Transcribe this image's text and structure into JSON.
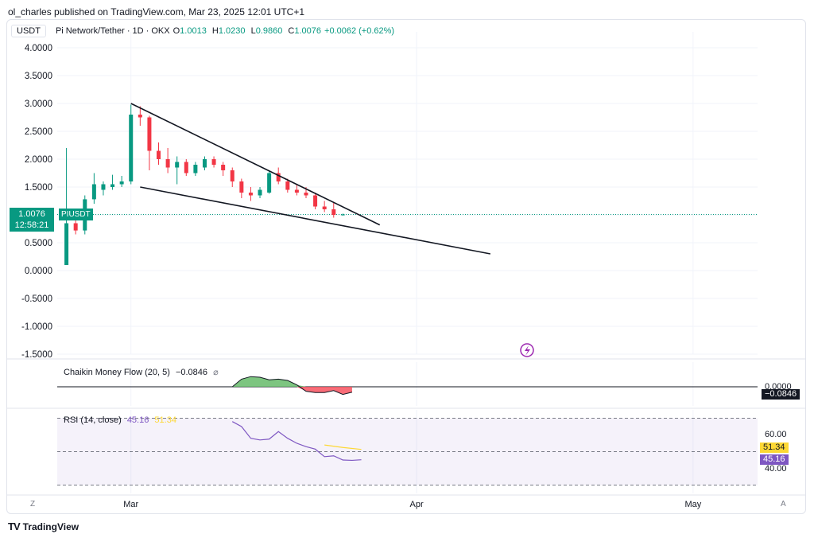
{
  "publisher_line": "ol_charles published on TradingView.com, Mar 23, 2025 12:01 UTC+1",
  "header": {
    "currency": "USDT",
    "symbol": "Pi Network/Tether · 1D · OKX",
    "open_label": "O",
    "open": "1.0013",
    "high_label": "H",
    "high": "1.0230",
    "low_label": "L",
    "low": "0.9860",
    "close_label": "C",
    "close": "1.0076",
    "change": "+0.0062 (+0.62%)"
  },
  "price_tag": {
    "value": "1.0076",
    "countdown": "12:58:21",
    "symbol": "PIUSDT"
  },
  "colors": {
    "up": "#089981",
    "down": "#f23645",
    "cmf_up": "#66bb6a",
    "cmf_down": "#f7525f",
    "rsi": "#7e57c2",
    "rsi_ma": "#fdd835"
  },
  "chart_data": [
    {
      "type": "candlestick",
      "title": "Pi Network/Tether · 1D · OKX",
      "ylim": [
        -1.5,
        4.0
      ],
      "y_ticks": [
        "4.0000",
        "3.5000",
        "3.0000",
        "2.5000",
        "2.0000",
        "1.5000",
        "1.0000",
        "0.5000",
        "0.0000",
        "-0.5000",
        "-1.0000",
        "-1.5000"
      ],
      "x_ticks": [
        "Mar",
        "Apr",
        "May"
      ],
      "x_tick_days": [
        0,
        31,
        61
      ],
      "x_range_days": [
        -8,
        68
      ],
      "grid": true,
      "candles": [
        {
          "d": -7,
          "o": 0.1,
          "h": 2.2,
          "l": 0.1,
          "c": 0.85
        },
        {
          "d": -6,
          "o": 0.85,
          "h": 1.05,
          "l": 0.65,
          "c": 0.72
        },
        {
          "d": -5,
          "o": 0.72,
          "h": 1.35,
          "l": 0.65,
          "c": 1.28
        },
        {
          "d": -4,
          "o": 1.28,
          "h": 1.75,
          "l": 1.2,
          "c": 1.55
        },
        {
          "d": -3,
          "o": 1.45,
          "h": 1.6,
          "l": 1.35,
          "c": 1.55
        },
        {
          "d": -2,
          "o": 1.5,
          "h": 1.72,
          "l": 1.45,
          "c": 1.55
        },
        {
          "d": -1,
          "o": 1.55,
          "h": 1.7,
          "l": 1.5,
          "c": 1.6
        },
        {
          "d": 0,
          "o": 1.6,
          "h": 2.98,
          "l": 1.55,
          "c": 2.8
        },
        {
          "d": 1,
          "o": 2.8,
          "h": 2.95,
          "l": 2.6,
          "c": 2.75
        },
        {
          "d": 2,
          "o": 2.75,
          "h": 2.78,
          "l": 1.8,
          "c": 2.15
        },
        {
          "d": 3,
          "o": 2.15,
          "h": 2.3,
          "l": 1.9,
          "c": 2.0
        },
        {
          "d": 4,
          "o": 2.0,
          "h": 2.2,
          "l": 1.75,
          "c": 1.85
        },
        {
          "d": 5,
          "o": 1.85,
          "h": 2.05,
          "l": 1.55,
          "c": 1.95
        },
        {
          "d": 6,
          "o": 1.95,
          "h": 2.0,
          "l": 1.7,
          "c": 1.75
        },
        {
          "d": 7,
          "o": 1.75,
          "h": 1.95,
          "l": 1.7,
          "c": 1.9
        },
        {
          "d": 8,
          "o": 1.85,
          "h": 2.05,
          "l": 1.8,
          "c": 2.0
        },
        {
          "d": 9,
          "o": 2.0,
          "h": 2.05,
          "l": 1.85,
          "c": 1.9
        },
        {
          "d": 10,
          "o": 1.9,
          "h": 1.95,
          "l": 1.7,
          "c": 1.8
        },
        {
          "d": 11,
          "o": 1.8,
          "h": 1.85,
          "l": 1.5,
          "c": 1.6
        },
        {
          "d": 12,
          "o": 1.6,
          "h": 1.65,
          "l": 1.3,
          "c": 1.4
        },
        {
          "d": 13,
          "o": 1.4,
          "h": 1.5,
          "l": 1.25,
          "c": 1.35
        },
        {
          "d": 14,
          "o": 1.35,
          "h": 1.5,
          "l": 1.3,
          "c": 1.45
        },
        {
          "d": 15,
          "o": 1.4,
          "h": 1.8,
          "l": 1.38,
          "c": 1.75
        },
        {
          "d": 16,
          "o": 1.75,
          "h": 1.85,
          "l": 1.55,
          "c": 1.6
        },
        {
          "d": 17,
          "o": 1.6,
          "h": 1.65,
          "l": 1.4,
          "c": 1.45
        },
        {
          "d": 18,
          "o": 1.45,
          "h": 1.55,
          "l": 1.35,
          "c": 1.4
        },
        {
          "d": 19,
          "o": 1.4,
          "h": 1.5,
          "l": 1.3,
          "c": 1.35
        },
        {
          "d": 20,
          "o": 1.35,
          "h": 1.4,
          "l": 1.1,
          "c": 1.15
        },
        {
          "d": 21,
          "o": 1.15,
          "h": 1.25,
          "l": 1.05,
          "c": 1.1
        },
        {
          "d": 22,
          "o": 1.1,
          "h": 1.22,
          "l": 0.95,
          "c": 1.0
        },
        {
          "d": 23,
          "o": 1.0013,
          "h": 1.023,
          "l": 0.986,
          "c": 1.0076
        }
      ],
      "trendlines": [
        {
          "d1": 0,
          "v1": 3.0,
          "d2": 27,
          "v2": 0.82
        },
        {
          "d1": 1,
          "v1": 1.5,
          "d2": 39,
          "v2": 0.3
        }
      ],
      "last_price": 1.0076
    },
    {
      "type": "area",
      "title": "Chaikin Money Flow (20, 5)",
      "value_label": "−0.0846",
      "eye_glyph": "⌀",
      "zero_label": "0.0000",
      "last_label": "−0.0846",
      "points": [
        {
          "d": 11,
          "v": 0.0
        },
        {
          "d": 12,
          "v": 0.12
        },
        {
          "d": 13,
          "v": 0.16
        },
        {
          "d": 14,
          "v": 0.15
        },
        {
          "d": 15,
          "v": 0.11
        },
        {
          "d": 16,
          "v": 0.12
        },
        {
          "d": 17,
          "v": 0.1
        },
        {
          "d": 18,
          "v": 0.03
        },
        {
          "d": 19,
          "v": -0.07
        },
        {
          "d": 20,
          "v": -0.09
        },
        {
          "d": 21,
          "v": -0.09
        },
        {
          "d": 22,
          "v": -0.06
        },
        {
          "d": 23,
          "v": -0.12
        },
        {
          "d": 24,
          "v": -0.0846
        }
      ]
    },
    {
      "type": "line",
      "title": "RSI (14, close)",
      "rsi_value": "45.16",
      "ma_value": "51.34",
      "ylim": [
        25,
        75
      ],
      "upper_band": 70,
      "middle_band": 50,
      "lower_band": 30,
      "y_ticks": [
        "60.00",
        "40.00"
      ],
      "rsi_points": [
        {
          "d": 11,
          "v": 68
        },
        {
          "d": 12,
          "v": 65
        },
        {
          "d": 13,
          "v": 58
        },
        {
          "d": 14,
          "v": 57
        },
        {
          "d": 15,
          "v": 57.5
        },
        {
          "d": 16,
          "v": 62
        },
        {
          "d": 17,
          "v": 58
        },
        {
          "d": 18,
          "v": 55
        },
        {
          "d": 19,
          "v": 53
        },
        {
          "d": 20,
          "v": 51.5
        },
        {
          "d": 21,
          "v": 47
        },
        {
          "d": 22,
          "v": 47.5
        },
        {
          "d": 23,
          "v": 45
        },
        {
          "d": 24,
          "v": 44.8
        },
        {
          "d": 25,
          "v": 45.16
        }
      ],
      "ma_points": [
        {
          "d": 21,
          "v": 54
        },
        {
          "d": 23,
          "v": 52.5
        },
        {
          "d": 25,
          "v": 51.34
        }
      ]
    }
  ],
  "axis_badges": {
    "left": "Z",
    "right": "A"
  },
  "footer": {
    "logo": "TV",
    "brand": "TradingView"
  }
}
